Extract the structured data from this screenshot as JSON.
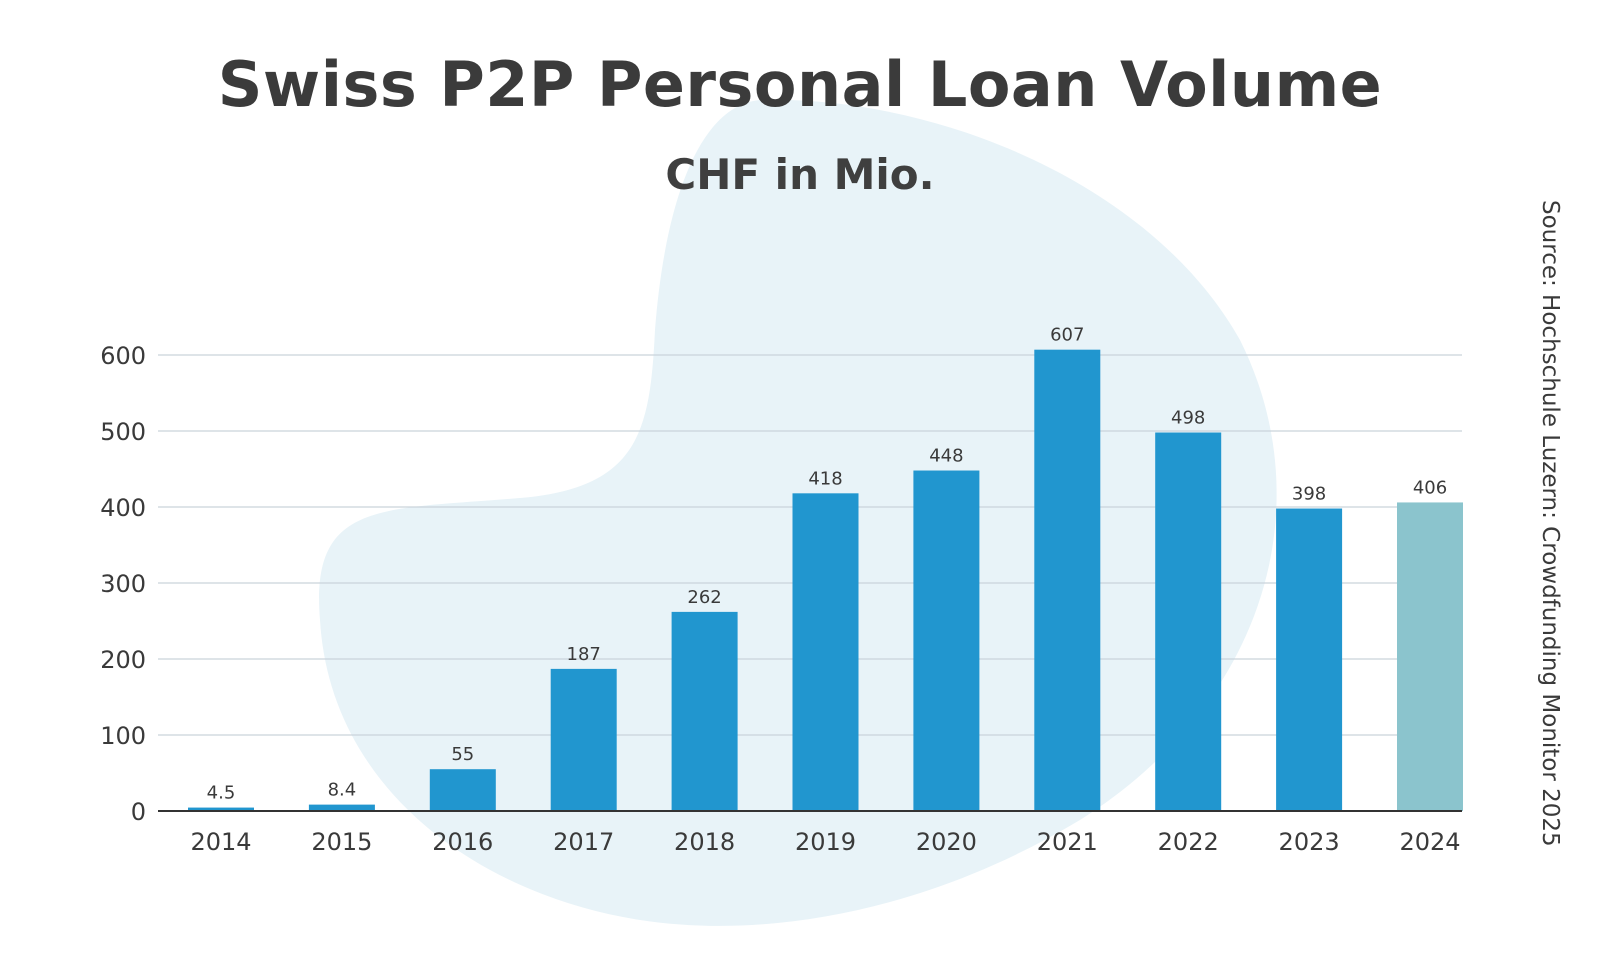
{
  "chart_data": {
    "type": "bar",
    "title": "Swiss P2P Personal Loan Volume",
    "subtitle": "CHF in Mio.",
    "xlabel": "",
    "ylabel": "",
    "source": "Source: Hochschule Luzern: Crowdfunding Monitor 2025",
    "categories": [
      "2014",
      "2015",
      "2016",
      "2017",
      "2018",
      "2019",
      "2020",
      "2021",
      "2022",
      "2023",
      "2024"
    ],
    "values": [
      4.5,
      8.4,
      55,
      187,
      262,
      418,
      448,
      607,
      498,
      398,
      406
    ],
    "data_labels": [
      "4.5",
      "8.4",
      "55",
      "187",
      "262",
      "418",
      "448",
      "607",
      "498",
      "398",
      "406"
    ],
    "yticks": [
      0,
      100,
      200,
      300,
      400,
      500,
      600
    ],
    "ylim": [
      0,
      650
    ],
    "grid": "horizontal",
    "legend": "none",
    "colors": {
      "bar": "#2196cf",
      "bar_highlight": "#8bc4cd",
      "highlight_category": "2024",
      "grid": "#c9d3da",
      "axis": "#333333",
      "background_blob": "#e8f3f8"
    }
  }
}
